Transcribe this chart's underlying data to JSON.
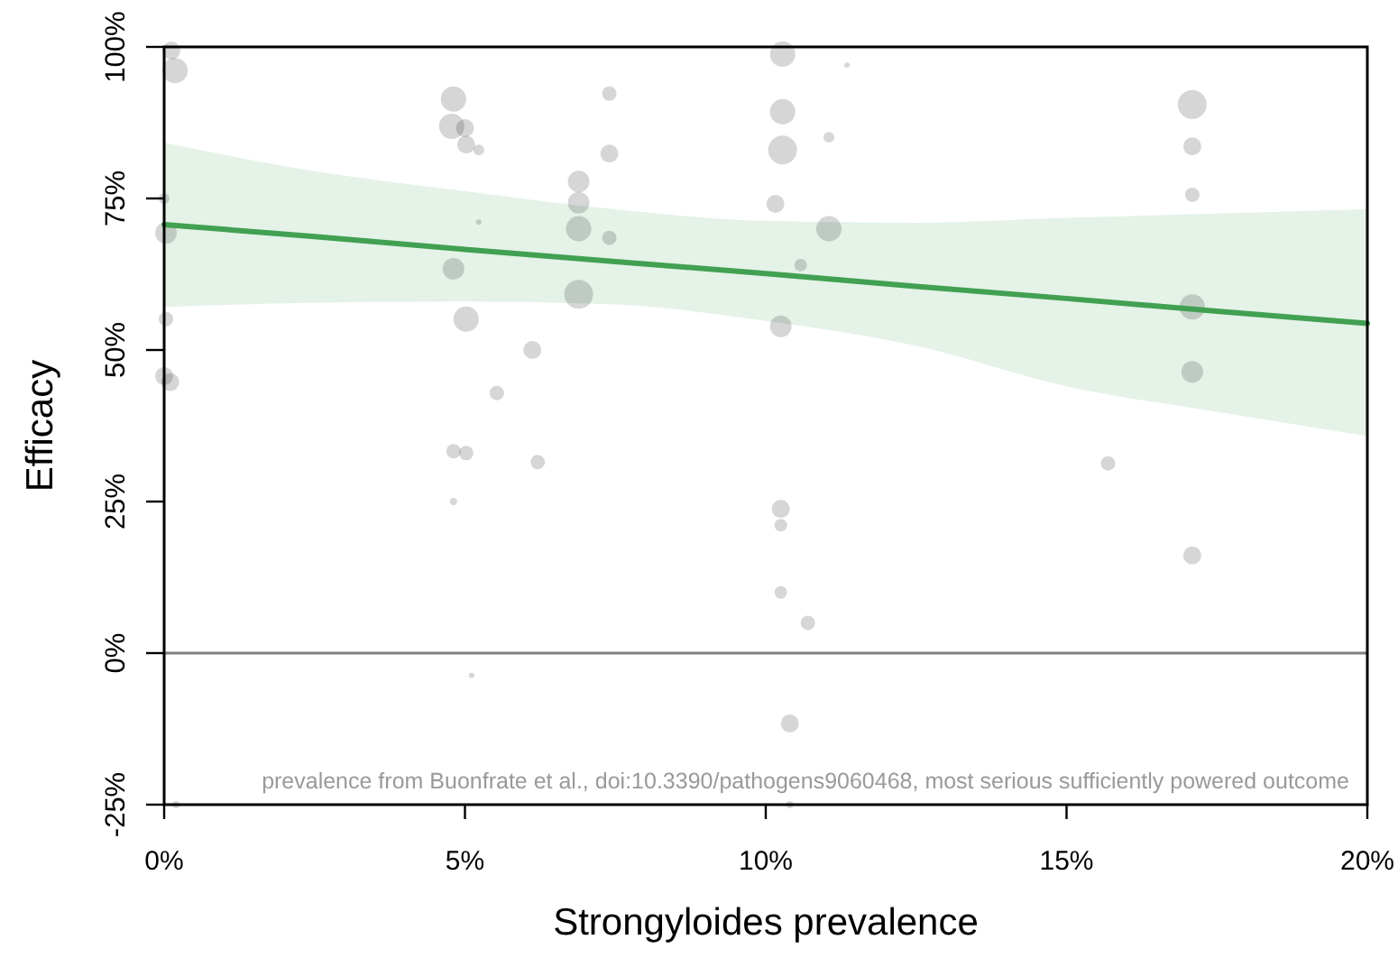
{
  "chart_data": {
    "type": "bubble",
    "xlabel": "Strongyloides prevalence",
    "ylabel": "Efficacy",
    "xlim": [
      0,
      20
    ],
    "xticks": [
      {
        "value": 0,
        "label": "0%"
      },
      {
        "value": 5,
        "label": "5%"
      },
      {
        "value": 10,
        "label": "10%"
      },
      {
        "value": 15,
        "label": "15%"
      },
      {
        "value": 20,
        "label": "20%"
      }
    ],
    "ylim": [
      -25,
      100
    ],
    "yticks": [
      {
        "value": -25,
        "label": "-25%"
      },
      {
        "value": 0,
        "label": "0%"
      },
      {
        "value": 25,
        "label": "25%"
      },
      {
        "value": 50,
        "label": "50%"
      },
      {
        "value": 75,
        "label": "75%"
      },
      {
        "value": 100,
        "label": "100%"
      }
    ],
    "ref_lines": [
      {
        "axis": "y",
        "value": 0,
        "color": "#808080"
      }
    ],
    "annotations": [
      "prevalence from Buonfrate et al., doi:10.3390/pathogens9060468, most serious sufficiently powered outcome"
    ],
    "series": [
      {
        "type": "bubble",
        "color": "#d6d6d6",
        "x": [
          0.12,
          0.18,
          0.0,
          0.03,
          0.03,
          0.0,
          0.1,
          0.2,
          4.81,
          4.78,
          5.0,
          5.02,
          5.23,
          5.23,
          4.81,
          5.02,
          4.81,
          5.02,
          4.81,
          5.11,
          5.53,
          6.12,
          6.21,
          6.89,
          6.89,
          6.89,
          6.89,
          7.4,
          7.4,
          7.4,
          10.28,
          10.28,
          10.28,
          10.16,
          11.05,
          10.58,
          10.25,
          10.25,
          10.25,
          10.25,
          10.7,
          10.4,
          10.4,
          11.35,
          11.05,
          15.69,
          17.09,
          17.09,
          17.09,
          17.09,
          17.09,
          17.09
        ],
        "values": [
          99.4,
          96.1,
          75.0,
          69.3,
          55.1,
          45.7,
          44.7,
          -25,
          91.4,
          86.9,
          86.6,
          83.9,
          83.0,
          71.1,
          63.4,
          55.1,
          33.3,
          33.0,
          25.0,
          -3.7,
          42.9,
          50.0,
          31.5,
          77.8,
          74.3,
          70.0,
          59.2,
          92.3,
          82.4,
          68.5,
          98.8,
          89.3,
          83.0,
          74.1,
          70.0,
          64.0,
          53.9,
          23.8,
          21.1,
          10.0,
          5.0,
          -11.6,
          -25,
          97.0,
          85.1,
          31.3,
          90.5,
          83.6,
          75.6,
          57.1,
          46.4,
          16.1
        ],
        "sizes": [
          0.39,
          0.77,
          0.14,
          0.56,
          0.25,
          0.39,
          0.39,
          0.06,
          0.77,
          0.77,
          0.39,
          0.39,
          0.14,
          0.035,
          0.56,
          0.77,
          0.25,
          0.25,
          0.06,
          0.035,
          0.25,
          0.39,
          0.25,
          0.56,
          0.56,
          0.77,
          1,
          0.25,
          0.39,
          0.25,
          0.77,
          0.77,
          1,
          0.39,
          0.77,
          0.19,
          0.56,
          0.39,
          0.19,
          0.19,
          0.25,
          0.39,
          0.06,
          0.035,
          0.14,
          0.25,
          1,
          0.39,
          0.25,
          0.77,
          0.56,
          0.39
        ]
      },
      {
        "type": "line",
        "color": "#41a052",
        "x": [
          0,
          2.5,
          5,
          7.5,
          10,
          12.5,
          15,
          17.5,
          20
        ],
        "values": [
          70.7,
          68.7,
          66.6,
          64.6,
          62.6,
          60.5,
          58.5,
          56.4,
          54.4
        ],
        "lower": [
          57.1,
          57.8,
          58.0,
          57.5,
          54.8,
          50.7,
          44.0,
          39.8,
          35.8
        ],
        "upper": [
          84.2,
          79.5,
          76.2,
          73.2,
          71.3,
          71.0,
          71.8,
          72.5,
          73.2
        ]
      }
    ]
  }
}
